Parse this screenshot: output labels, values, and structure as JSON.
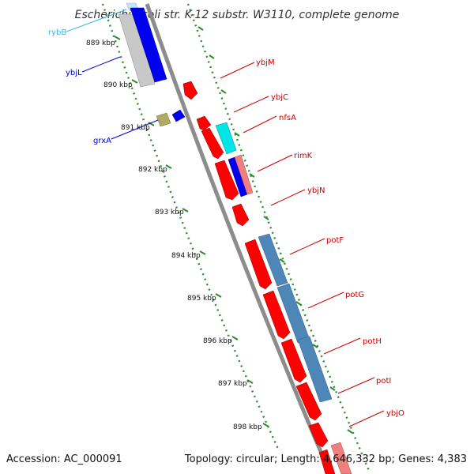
{
  "header": {
    "title": "Escherichia coli str. K-12 substr. W3110, complete genome"
  },
  "footer": {
    "accession": "Accession: AC_000091",
    "topology": "Topology: circular; Length: 4,646,332 bp; Genes: 4,383"
  },
  "colors": {
    "backbone": "#8c8c8c",
    "ruler_dots": "#2e8b2e",
    "gene_red": "#ff0000",
    "gene_light_red": "#f08080",
    "gene_blue": "#0000ee",
    "gene_cyan": "#00e6e6",
    "gene_steel": "#4f86b8",
    "gene_gray": "#c8c8c8",
    "gene_olive": "#b3a860",
    "label_red": "#cc0000",
    "label_blue": "#0000cc",
    "label_cyan": "#33bbee"
  },
  "scale_labels": [
    "889 kbp",
    "890 kbp",
    "891 kbp",
    "892 kbp",
    "893 kbp",
    "894 kbp",
    "895 kbp",
    "896 kbp",
    "897 kbp",
    "898 kbp"
  ],
  "gene_labels": [
    {
      "name": "rybB",
      "color": "label_cyan"
    },
    {
      "name": "ybjL",
      "color": "label_blue"
    },
    {
      "name": "grxA",
      "color": "label_blue"
    },
    {
      "name": "ybjM",
      "color": "label_red"
    },
    {
      "name": "ybjC",
      "color": "label_red"
    },
    {
      "name": "nfsA",
      "color": "label_red"
    },
    {
      "name": "rimK",
      "color": "label_red"
    },
    {
      "name": "ybjN",
      "color": "label_red"
    },
    {
      "name": "potF",
      "color": "label_red"
    },
    {
      "name": "potG",
      "color": "label_red"
    },
    {
      "name": "potH",
      "color": "label_red"
    },
    {
      "name": "potI",
      "color": "label_red"
    },
    {
      "name": "ybjO",
      "color": "label_red"
    }
  ]
}
